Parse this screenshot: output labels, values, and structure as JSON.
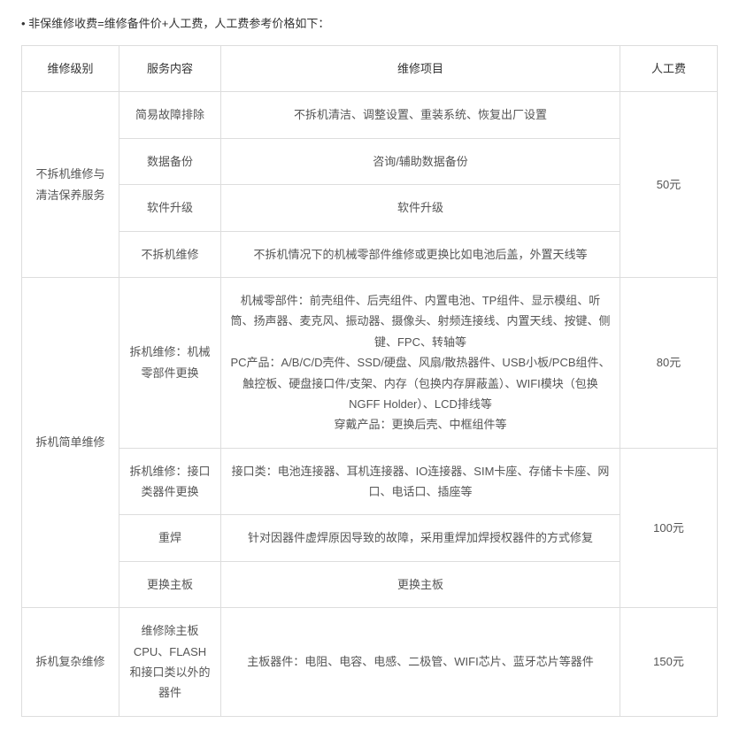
{
  "intro_text": "• 非保维修收费=维修备件价+人工费，人工费参考价格如下：",
  "table": {
    "headers": {
      "level": "维修级别",
      "service": "服务内容",
      "item": "维修项目",
      "fee": "人工费"
    },
    "rows": [
      {
        "level": "不拆机维修与清洁保养服务",
        "level_rowspan": 4,
        "service": "简易故障排除",
        "item": "不拆机清洁、调整设置、重装系统、恢复出厂设置",
        "fee": "50元",
        "fee_rowspan": 4
      },
      {
        "service": "数据备份",
        "item": "咨询/辅助数据备份"
      },
      {
        "service": "软件升级",
        "item": "软件升级"
      },
      {
        "service": "不拆机维修",
        "item": "不拆机情况下的机械零部件维修或更换比如电池后盖，外置天线等"
      },
      {
        "level": "拆机简单维修",
        "level_rowspan": 4,
        "service": "拆机维修：机械零部件更换",
        "item": "机械零部件：前壳组件、后壳组件、内置电池、TP组件、显示模组、听筒、扬声器、麦克风、振动器、摄像头、射频连接线、内置天线、按键、侧键、FPC、转轴等\nPC产品：A/B/C/D壳件、SSD/硬盘、风扇/散热器件、USB小板/PCB组件、触控板、硬盘接口件/支架、内存（包换内存屏蔽盖）、WIFI模块（包换NGFF Holder）、LCD排线等\n穿戴产品：更换后壳、中框组件等",
        "fee": "80元",
        "fee_rowspan": 1
      },
      {
        "service": "拆机维修：接口类器件更换",
        "item": "接口类：电池连接器、耳机连接器、IO连接器、SIM卡座、存储卡卡座、网口、电话口、插座等",
        "fee": "100元",
        "fee_rowspan": 3
      },
      {
        "service": "重焊",
        "item": "针对因器件虚焊原因导致的故障，采用重焊加焊授权器件的方式修复"
      },
      {
        "service": "更换主板",
        "item": "更换主板"
      },
      {
        "level": "拆机复杂维修",
        "level_rowspan": 1,
        "service": "维修除主板CPU、FLASH和接口类以外的器件",
        "item": "主板器件：电阻、电容、电感、二极管、WIFI芯片、蓝牙芯片等器件",
        "fee": "150元",
        "fee_rowspan": 1
      }
    ]
  }
}
